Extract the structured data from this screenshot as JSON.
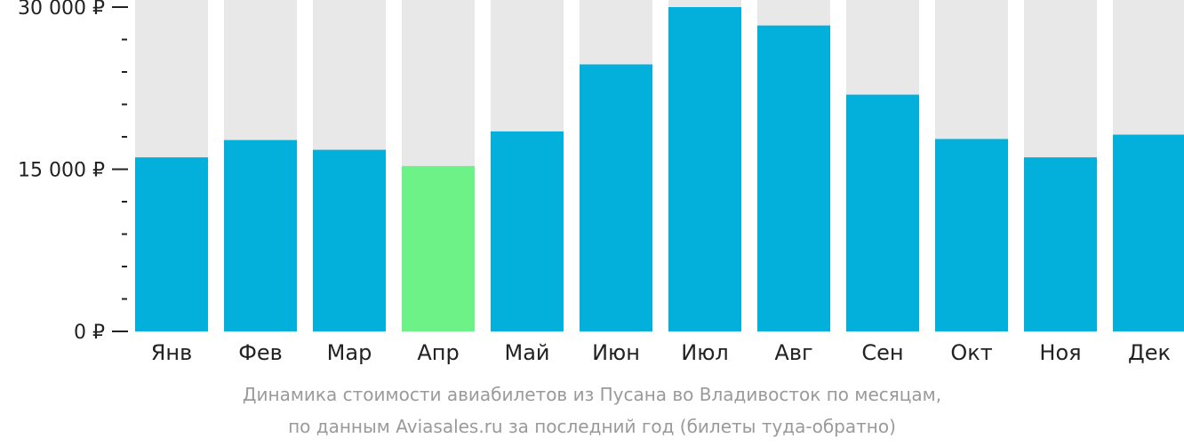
{
  "chart_data": {
    "type": "bar",
    "categories": [
      "Янв",
      "Фев",
      "Мар",
      "Апр",
      "Май",
      "Июн",
      "Июл",
      "Авг",
      "Сен",
      "Окт",
      "Ноя",
      "Дек"
    ],
    "values": [
      16100,
      17700,
      16800,
      15300,
      18500,
      24700,
      30000,
      28300,
      21900,
      17800,
      16100,
      18200
    ],
    "highlight_index": 3,
    "ylim": [
      0,
      30000
    ],
    "yticks": [
      {
        "value": 30000,
        "label": "30 000 ₽"
      },
      {
        "value": 15000,
        "label": "15 000 ₽"
      },
      {
        "value": 0,
        "label": "0 ₽"
      }
    ],
    "minor_yticks": [
      3000,
      6000,
      9000,
      12000,
      18000,
      21000,
      24000,
      27000
    ],
    "colors": {
      "bar": "#02b0db",
      "highlight": "#6cf287",
      "background_column": "#e8e8e8",
      "axis": "#222222"
    },
    "caption_lines": [
      "Динамика стоимости авиабилетов из Пусана во Владивосток по месяцам,",
      "по данным Aviasales.ru за последний год (билеты туда-обратно)"
    ]
  }
}
